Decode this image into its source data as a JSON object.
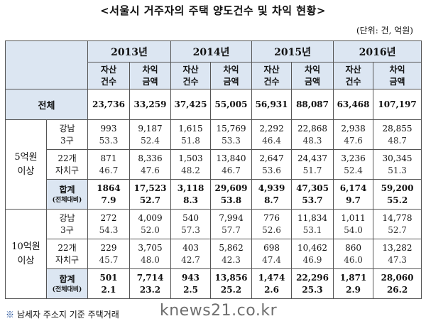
{
  "title": "<서울시 거주자의 주택 양도건수 및 차익 현황>",
  "unit": "(단위: 건, 억원)",
  "years": [
    "2013년",
    "2014년",
    "2015년",
    "2016년"
  ],
  "sub_headers": {
    "count": [
      "자산",
      "건수"
    ],
    "gain": [
      "차익",
      "금액"
    ]
  },
  "total": {
    "label": "전체",
    "values": [
      "23,736",
      "33,259",
      "37,425",
      "55,005",
      "56,931",
      "88,087",
      "63,468",
      "107,197"
    ]
  },
  "groups": [
    {
      "label": [
        "5억원",
        "이상"
      ],
      "rows": [
        {
          "label": [
            "강남",
            "3구"
          ],
          "top": [
            "993",
            "9,187",
            "1,615",
            "15,769",
            "2,292",
            "22,868",
            "2,938",
            "28,855"
          ],
          "bot": [
            "53.3",
            "52.4",
            "51.8",
            "53.3",
            "46.4",
            "48.3",
            "47.6",
            "48.7"
          ]
        },
        {
          "label": [
            "22개",
            "자치구"
          ],
          "top": [
            "871",
            "8,336",
            "1,503",
            "13,840",
            "2,647",
            "24,437",
            "3,236",
            "30,345"
          ],
          "bot": [
            "46.7",
            "47.6",
            "48.2",
            "46.7",
            "53.6",
            "51.7",
            "52.4",
            "51.3"
          ]
        },
        {
          "label": [
            "합계",
            "(전체대비)"
          ],
          "top": [
            "1864",
            "17,523",
            "3,118",
            "29,609",
            "4,939",
            "47,305",
            "6,174",
            "59,200"
          ],
          "bot": [
            "7.9",
            "52.7",
            "8.3",
            "53.8",
            "8.7",
            "53.7",
            "9.7",
            "55.2"
          ]
        }
      ]
    },
    {
      "label": [
        "10억원",
        "이상"
      ],
      "rows": [
        {
          "label": [
            "강남",
            "3구"
          ],
          "top": [
            "272",
            "4,009",
            "540",
            "7,994",
            "776",
            "11,834",
            "1,011",
            "14,778"
          ],
          "bot": [
            "54.3",
            "52.0",
            "57.3",
            "57.7",
            "52.6",
            "53.1",
            "54.0",
            "52.7"
          ]
        },
        {
          "label": [
            "22개",
            "자치구"
          ],
          "top": [
            "229",
            "3,705",
            "403",
            "5,862",
            "698",
            "10,462",
            "860",
            "13,282"
          ],
          "bot": [
            "45.7",
            "48.0",
            "42.7",
            "42.3",
            "47.4",
            "46.9",
            "46.0",
            "47.3"
          ]
        },
        {
          "label": [
            "합계",
            "(전체대비)"
          ],
          "top": [
            "501",
            "7,714",
            "943",
            "13,856",
            "1,474",
            "22,296",
            "1,871",
            "28,060"
          ],
          "bot": [
            "2.1",
            "23.2",
            "2.5",
            "25.2",
            "2.6",
            "25.3",
            "2.9",
            "26.2"
          ]
        }
      ]
    }
  ],
  "footnote": {
    "mark": "※",
    "text": "남세자 주소지 기준 주택거래"
  },
  "watermark": "knews21.co.kr",
  "colors": {
    "header_bg": "#dce6f2",
    "footnote_mark": "#1f4e9a"
  }
}
